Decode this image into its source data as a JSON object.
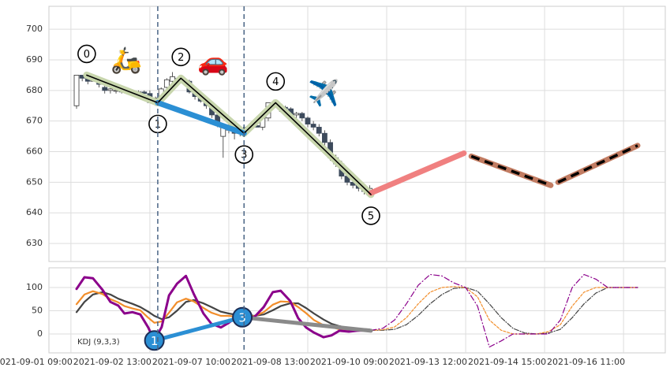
{
  "chart_data": [
    {
      "type": "candlestick",
      "x": [
        1,
        2,
        3,
        4,
        5,
        6,
        7,
        8,
        9,
        10,
        11,
        12,
        13,
        14,
        15,
        16,
        17,
        18,
        19,
        20,
        21,
        22,
        23,
        24,
        25,
        26,
        27,
        28,
        29,
        30,
        31,
        32,
        33,
        34,
        35,
        36,
        37,
        38,
        39,
        40,
        41,
        42,
        43,
        44,
        45,
        46,
        47,
        48,
        49,
        50,
        51,
        52,
        53
      ],
      "open": [
        675,
        685,
        684,
        683,
        684,
        681,
        680,
        680,
        680,
        680,
        679.5,
        679,
        679.5,
        679,
        676,
        677,
        681,
        683,
        684,
        683.5,
        683,
        679.5,
        678,
        676.5,
        675,
        672,
        665,
        668,
        667,
        666,
        666,
        668,
        668.5,
        668,
        671,
        676,
        675.5,
        674.5,
        674,
        672,
        672.5,
        671,
        669,
        668,
        666,
        663,
        658,
        656,
        652,
        650,
        649,
        648,
        647
      ],
      "high": [
        685,
        685,
        685,
        685,
        684,
        682,
        681,
        681,
        680,
        681,
        680,
        680,
        680,
        680,
        678,
        681,
        684,
        686,
        684.5,
        684,
        683.5,
        680,
        678.5,
        677,
        675.5,
        672,
        668,
        669,
        668,
        667,
        668,
        669,
        669,
        672,
        676,
        677,
        676,
        675,
        674.5,
        673,
        673,
        671.5,
        670,
        669,
        667,
        664,
        659,
        657,
        653,
        651,
        650,
        649,
        649
      ],
      "low": [
        674,
        683,
        682,
        683,
        681,
        679,
        679,
        679,
        679,
        679,
        679,
        678,
        678,
        676,
        675,
        676,
        680,
        682,
        683,
        683,
        679,
        677,
        676,
        674,
        671,
        668,
        658,
        666,
        664,
        665,
        665,
        667,
        668,
        667,
        670,
        674,
        673,
        672,
        671,
        671,
        670,
        668,
        667,
        665,
        662,
        657,
        655,
        651,
        649,
        648,
        647,
        646,
        646
      ],
      "close": [
        685,
        684,
        683,
        684,
        682,
        680,
        680.5,
        680,
        679.5,
        680,
        679,
        679.5,
        679,
        676,
        677.5,
        680.5,
        683.5,
        684.5,
        683.5,
        683,
        679.5,
        678,
        676.5,
        675,
        672,
        669,
        668,
        667,
        666,
        666.5,
        668,
        668.5,
        668,
        671,
        676,
        675.5,
        674.5,
        674,
        672,
        672.5,
        671,
        669,
        668,
        666,
        663,
        658,
        656,
        652,
        650,
        649,
        648,
        647,
        648
      ],
      "colors": {
        "up": "#ffffff",
        "down": "#3d4a5c"
      },
      "xlim": [
        -3.9,
        105.4
      ],
      "ylim": [
        624.1,
        707.5
      ],
      "yticks": [
        630,
        640,
        650,
        660,
        670,
        680,
        690,
        700
      ],
      "grid": true,
      "zigzag": {
        "x": [
          2.8,
          15.4,
          19.5,
          30.7,
          36.3,
          53.2
        ],
        "y": [
          685,
          676,
          684,
          666,
          676,
          646
        ],
        "labels": [
          "0",
          "1",
          "2",
          "3",
          "4",
          "5"
        ],
        "color": "#c8d6ad"
      },
      "lines": [
        {
          "x": [
            15.4,
            30.7
          ],
          "y": [
            676,
            666
          ],
          "color": "#2b8fd4"
        },
        {
          "x": [
            53.2,
            69.7
          ],
          "y": [
            646.5,
            659.5
          ],
          "color": "#f08080"
        },
        {
          "x": [
            71,
            85.1
          ],
          "y": [
            658.5,
            649
          ],
          "color": "#c27c62",
          "dashed": true
        },
        {
          "x": [
            86.4,
            100.5
          ],
          "y": [
            650,
            662
          ],
          "color": "#c27c62",
          "dashed": true
        }
      ],
      "vlines": [
        15.4,
        30.7
      ],
      "icons": {
        "symbols": [
          "🛵",
          "🚗",
          "✈️"
        ],
        "x": [
          9.8,
          25.2,
          44.8
        ],
        "y": [
          689.5,
          689,
          678.7
        ]
      }
    },
    {
      "type": "line",
      "annotation": "KDJ (9,3,3)",
      "x": [
        1.0,
        2.4,
        3.9,
        5.6,
        7.0,
        8.4,
        9.5,
        10.9,
        12.3,
        13.7,
        14.8,
        16.1,
        17.4,
        18.8,
        20.4,
        21.8,
        23.5,
        24.9,
        26.6,
        28.0,
        29.4,
        31.1,
        32.5,
        34.2,
        35.8,
        37.2,
        38.9,
        40.3,
        41.7,
        43.1,
        44.8,
        46.2,
        47.6,
        49.3,
        50.7,
        52.9
      ],
      "series": [
        {
          "color": "#444444",
          "values": [
            47,
            69,
            85,
            90,
            85,
            76,
            71,
            65,
            58,
            48,
            39,
            32,
            36,
            50,
            69,
            73,
            66,
            58,
            48,
            44,
            41,
            41,
            39,
            42,
            51,
            60,
            66,
            66,
            56,
            44,
            31,
            22,
            17,
            12,
            11,
            10
          ]
        },
        {
          "color": "#f28e2b",
          "values": [
            64,
            85,
            92,
            86,
            75,
            68,
            60,
            55,
            51,
            35,
            24,
            27,
            46,
            68,
            76,
            70,
            56,
            46,
            39,
            39,
            37,
            41,
            38,
            47,
            63,
            70,
            69,
            58,
            45,
            30,
            19,
            15,
            10,
            8,
            7,
            8
          ]
        },
        {
          "color": "#8b008b",
          "values": [
            97,
            122,
            120,
            95,
            69,
            61,
            44,
            47,
            42,
            14,
            -14,
            15,
            83,
            108,
            125,
            86,
            44,
            22,
            14,
            24,
            37,
            37,
            36,
            58,
            90,
            93,
            71,
            34,
            14,
            3,
            -7,
            -3,
            7,
            5,
            7,
            8
          ]
        }
      ],
      "forecast": {
        "x": [
          53.2,
          55.3,
          57.4,
          59.5,
          61.6,
          63.7,
          65.8,
          67.9,
          70.0,
          72.1,
          74.2,
          76.3,
          78.4,
          80.5,
          82.6,
          84.7,
          86.8,
          88.9,
          91.0,
          93.1,
          95.2,
          97.3,
          100.5
        ],
        "series": [
          {
            "color": "#444444",
            "values": [
              8,
              8,
              10,
              20,
              40,
              65,
              85,
              98,
              100,
              92,
              65,
              35,
              12,
              2,
              0,
              2,
              10,
              35,
              65,
              88,
              100,
              100,
              100
            ]
          },
          {
            "color": "#f28e2b",
            "values": [
              8,
              9,
              15,
              35,
              65,
              90,
              100,
              102,
              100,
              80,
              30,
              8,
              0,
              0,
              0,
              5,
              20,
              60,
              90,
              100,
              100,
              100,
              100
            ]
          },
          {
            "color": "#8b008b",
            "values": [
              8,
              12,
              30,
              65,
              105,
              128,
              125,
              110,
              100,
              60,
              -28,
              -15,
              0,
              0,
              0,
              0,
              30,
              100,
              128,
              118,
              100,
              100,
              100
            ]
          }
        ]
      },
      "lines": [
        {
          "x": [
            14.8,
            30.4
          ],
          "y": [
            -14,
            36
          ],
          "color": "#2b8fd4"
        },
        {
          "x": [
            30.4,
            53.2
          ],
          "y": [
            36,
            7
          ],
          "color": "#8a8a8a"
        }
      ],
      "points": {
        "labels": [
          "1",
          "3"
        ],
        "x": [
          14.8,
          30.4
        ],
        "y": [
          -14,
          36
        ],
        "color": "#2b8fd4"
      },
      "xlim": [
        -3.9,
        105.4
      ],
      "ylim": [
        -40.7,
        142.4
      ],
      "yticks": [
        0,
        50,
        100
      ],
      "grid": true,
      "xticks": [
        {
          "value": 0,
          "label": "2021-09-01 09:00"
        },
        {
          "value": 14,
          "label": "2021-09-02 13:00"
        },
        {
          "value": 28,
          "label": "2021-09-07 10:00"
        },
        {
          "value": 42,
          "label": "2021-09-08 13:00"
        },
        {
          "value": 56,
          "label": "2021-09-10 09:00"
        },
        {
          "value": 70,
          "label": "2021-09-13 12:00"
        },
        {
          "value": 84,
          "label": "2021-09-14 15:00"
        },
        {
          "value": 98,
          "label": "2021-09-16 11:00"
        }
      ]
    }
  ]
}
